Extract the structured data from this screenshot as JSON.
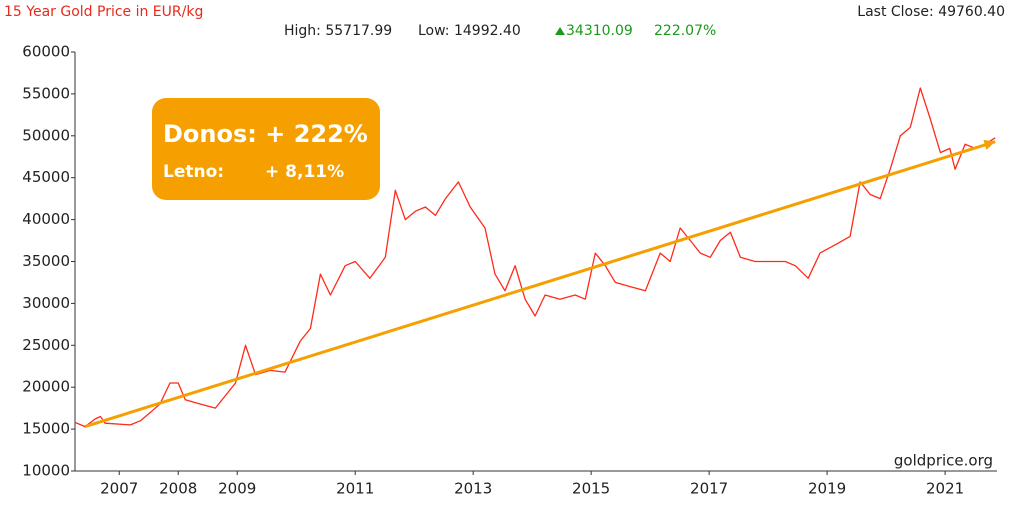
{
  "chart_data": {
    "type": "line",
    "title": "15 Year Gold Price in EUR/kg",
    "last_close": "Last Close: 49760.40",
    "stats": {
      "high": "High: 55717.99",
      "low": "Low: 14992.40",
      "change": "34310.09",
      "change_pct": "222.07%"
    },
    "annotation": {
      "headline": "Donos: + 222%",
      "yearly_label": "Letno:",
      "yearly_value": "+ 8,11%"
    },
    "watermark": "goldprice.org",
    "x": [
      2006.25,
      2006.42,
      2006.59,
      2006.68,
      2006.76,
      2007.19,
      2007.36,
      2007.53,
      2007.69,
      2007.86,
      2008.0,
      2008.12,
      2008.37,
      2008.63,
      2008.8,
      2008.97,
      2009.14,
      2009.31,
      2009.56,
      2009.81,
      2010.07,
      2010.24,
      2010.41,
      2010.58,
      2010.83,
      2011.0,
      2011.25,
      2011.51,
      2011.68,
      2011.85,
      2012.02,
      2012.19,
      2012.36,
      2012.53,
      2012.75,
      2012.95,
      2013.2,
      2013.37,
      2013.54,
      2013.71,
      2013.88,
      2014.05,
      2014.22,
      2014.47,
      2014.73,
      2014.9,
      2015.07,
      2015.24,
      2015.41,
      2015.66,
      2015.92,
      2016.17,
      2016.34,
      2016.51,
      2016.68,
      2016.85,
      2017.02,
      2017.19,
      2017.36,
      2017.53,
      2017.78,
      2018.03,
      2018.29,
      2018.46,
      2018.68,
      2018.88,
      2019.14,
      2019.39,
      2019.56,
      2019.73,
      2019.9,
      2020.07,
      2020.24,
      2020.41,
      2020.58,
      2020.75,
      2020.92,
      2021.08,
      2021.17,
      2021.34,
      2021.51,
      2021.68,
      2021.85
    ],
    "series": [
      {
        "color": "#ff2a1a",
        "values": [
          15800,
          15300,
          16200,
          16500,
          15700,
          15500,
          16000,
          17000,
          18000,
          20500,
          20500,
          18500,
          18000,
          17500,
          19000,
          20500,
          25000,
          21500,
          22000,
          21800,
          25500,
          27000,
          33500,
          31000,
          34500,
          35000,
          33000,
          35500,
          43500,
          40000,
          41000,
          41500,
          40500,
          42500,
          44500,
          41500,
          39000,
          33500,
          31500,
          34500,
          30500,
          28500,
          31000,
          30500,
          31000,
          30500,
          36000,
          34500,
          32500,
          32000,
          31500,
          36000,
          35000,
          39000,
          37500,
          36000,
          35500,
          37500,
          38500,
          35500,
          35000,
          35000,
          35000,
          34500,
          33000,
          36000,
          37000,
          38000,
          44500,
          43000,
          42500,
          46000,
          50000,
          51000,
          55700,
          52000,
          48000,
          48500,
          46000,
          49000,
          48500,
          49000,
          49760
        ]
      }
    ],
    "trend": {
      "color": "#f5a000",
      "x": [
        2006.42,
        2021.85
      ],
      "values": [
        15300,
        49300
      ]
    },
    "xlim": [
      2006.25,
      2021.88
    ],
    "xticks": [
      2007,
      2008,
      2009,
      2011,
      2013,
      2015,
      2017,
      2019,
      2021
    ],
    "ylim": [
      10000,
      60000
    ],
    "yticks": [
      10000,
      15000,
      20000,
      25000,
      30000,
      35000,
      40000,
      45000,
      50000,
      55000,
      60000
    ],
    "grid": false
  }
}
